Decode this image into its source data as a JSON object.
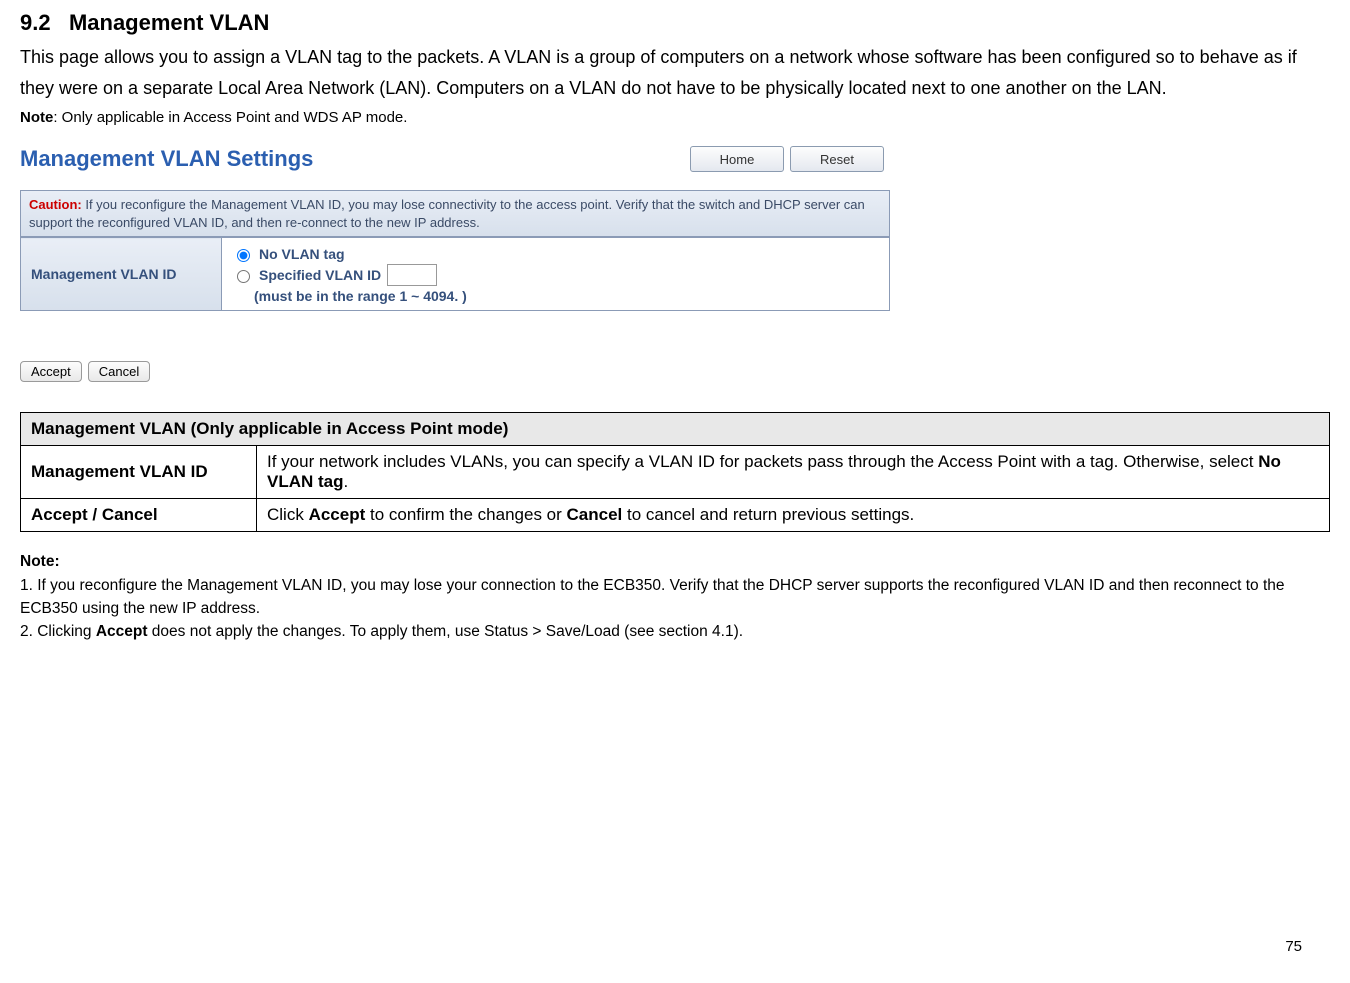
{
  "section": {
    "number": "9.2",
    "title": "Management VLAN"
  },
  "intro": "This page allows you to assign a VLAN tag to the packets. A VLAN is a group of computers on a network whose software has been configured so to behave as if they were on a separate Local Area Network (LAN). Computers on a VLAN do not have to be physically located next to one another on the LAN.",
  "intro_note_label": "Note",
  "intro_note_text": ": Only applicable in Access Point and WDS AP mode.",
  "screenshot": {
    "title": "Management VLAN Settings",
    "buttons": {
      "home": "Home",
      "reset": "Reset"
    },
    "caution_label": "Caution:",
    "caution_text": " If you reconfigure the Management VLAN ID, you may lose connectivity to the access point. Verify that the switch and DHCP server can support the reconfigured VLAN ID, and then re-connect to the new IP address.",
    "row_label": "Management VLAN ID",
    "opt_no_tag": "No VLAN tag",
    "opt_specified": "Specified VLAN ID",
    "range_hint": "(must be in the range 1 ~ 4094. )",
    "vlan_input_value": "",
    "accept": "Accept",
    "cancel": "Cancel"
  },
  "desc_table": {
    "header": "Management VLAN (Only applicable in Access Point mode)",
    "rows": [
      {
        "label": "Management VLAN ID",
        "text_a": "If your network includes VLANs, you can specify a VLAN ID for packets pass through the Access Point with a tag. Otherwise, select ",
        "bold_a": "No VLAN tag",
        "text_b": "."
      },
      {
        "label": "Accept / Cancel",
        "text_a": "Click ",
        "bold_a": "Accept",
        "text_b": " to confirm the changes or ",
        "bold_b": "Cancel",
        "text_c": " to cancel and return previous settings."
      }
    ]
  },
  "footnote": {
    "head": "Note:",
    "line1": "1. If you reconfigure the Management VLAN ID, you may lose your connection to the ECB350. Verify that the DHCP server supports the reconfigured VLAN ID and then reconnect to the ECB350 using the new IP address.",
    "line2_a": "2. Clicking ",
    "line2_bold": "Accept",
    "line2_b": " does not apply the changes. To apply them, use Status > Save/Load (see section 4.1)."
  },
  "page_number": "75"
}
